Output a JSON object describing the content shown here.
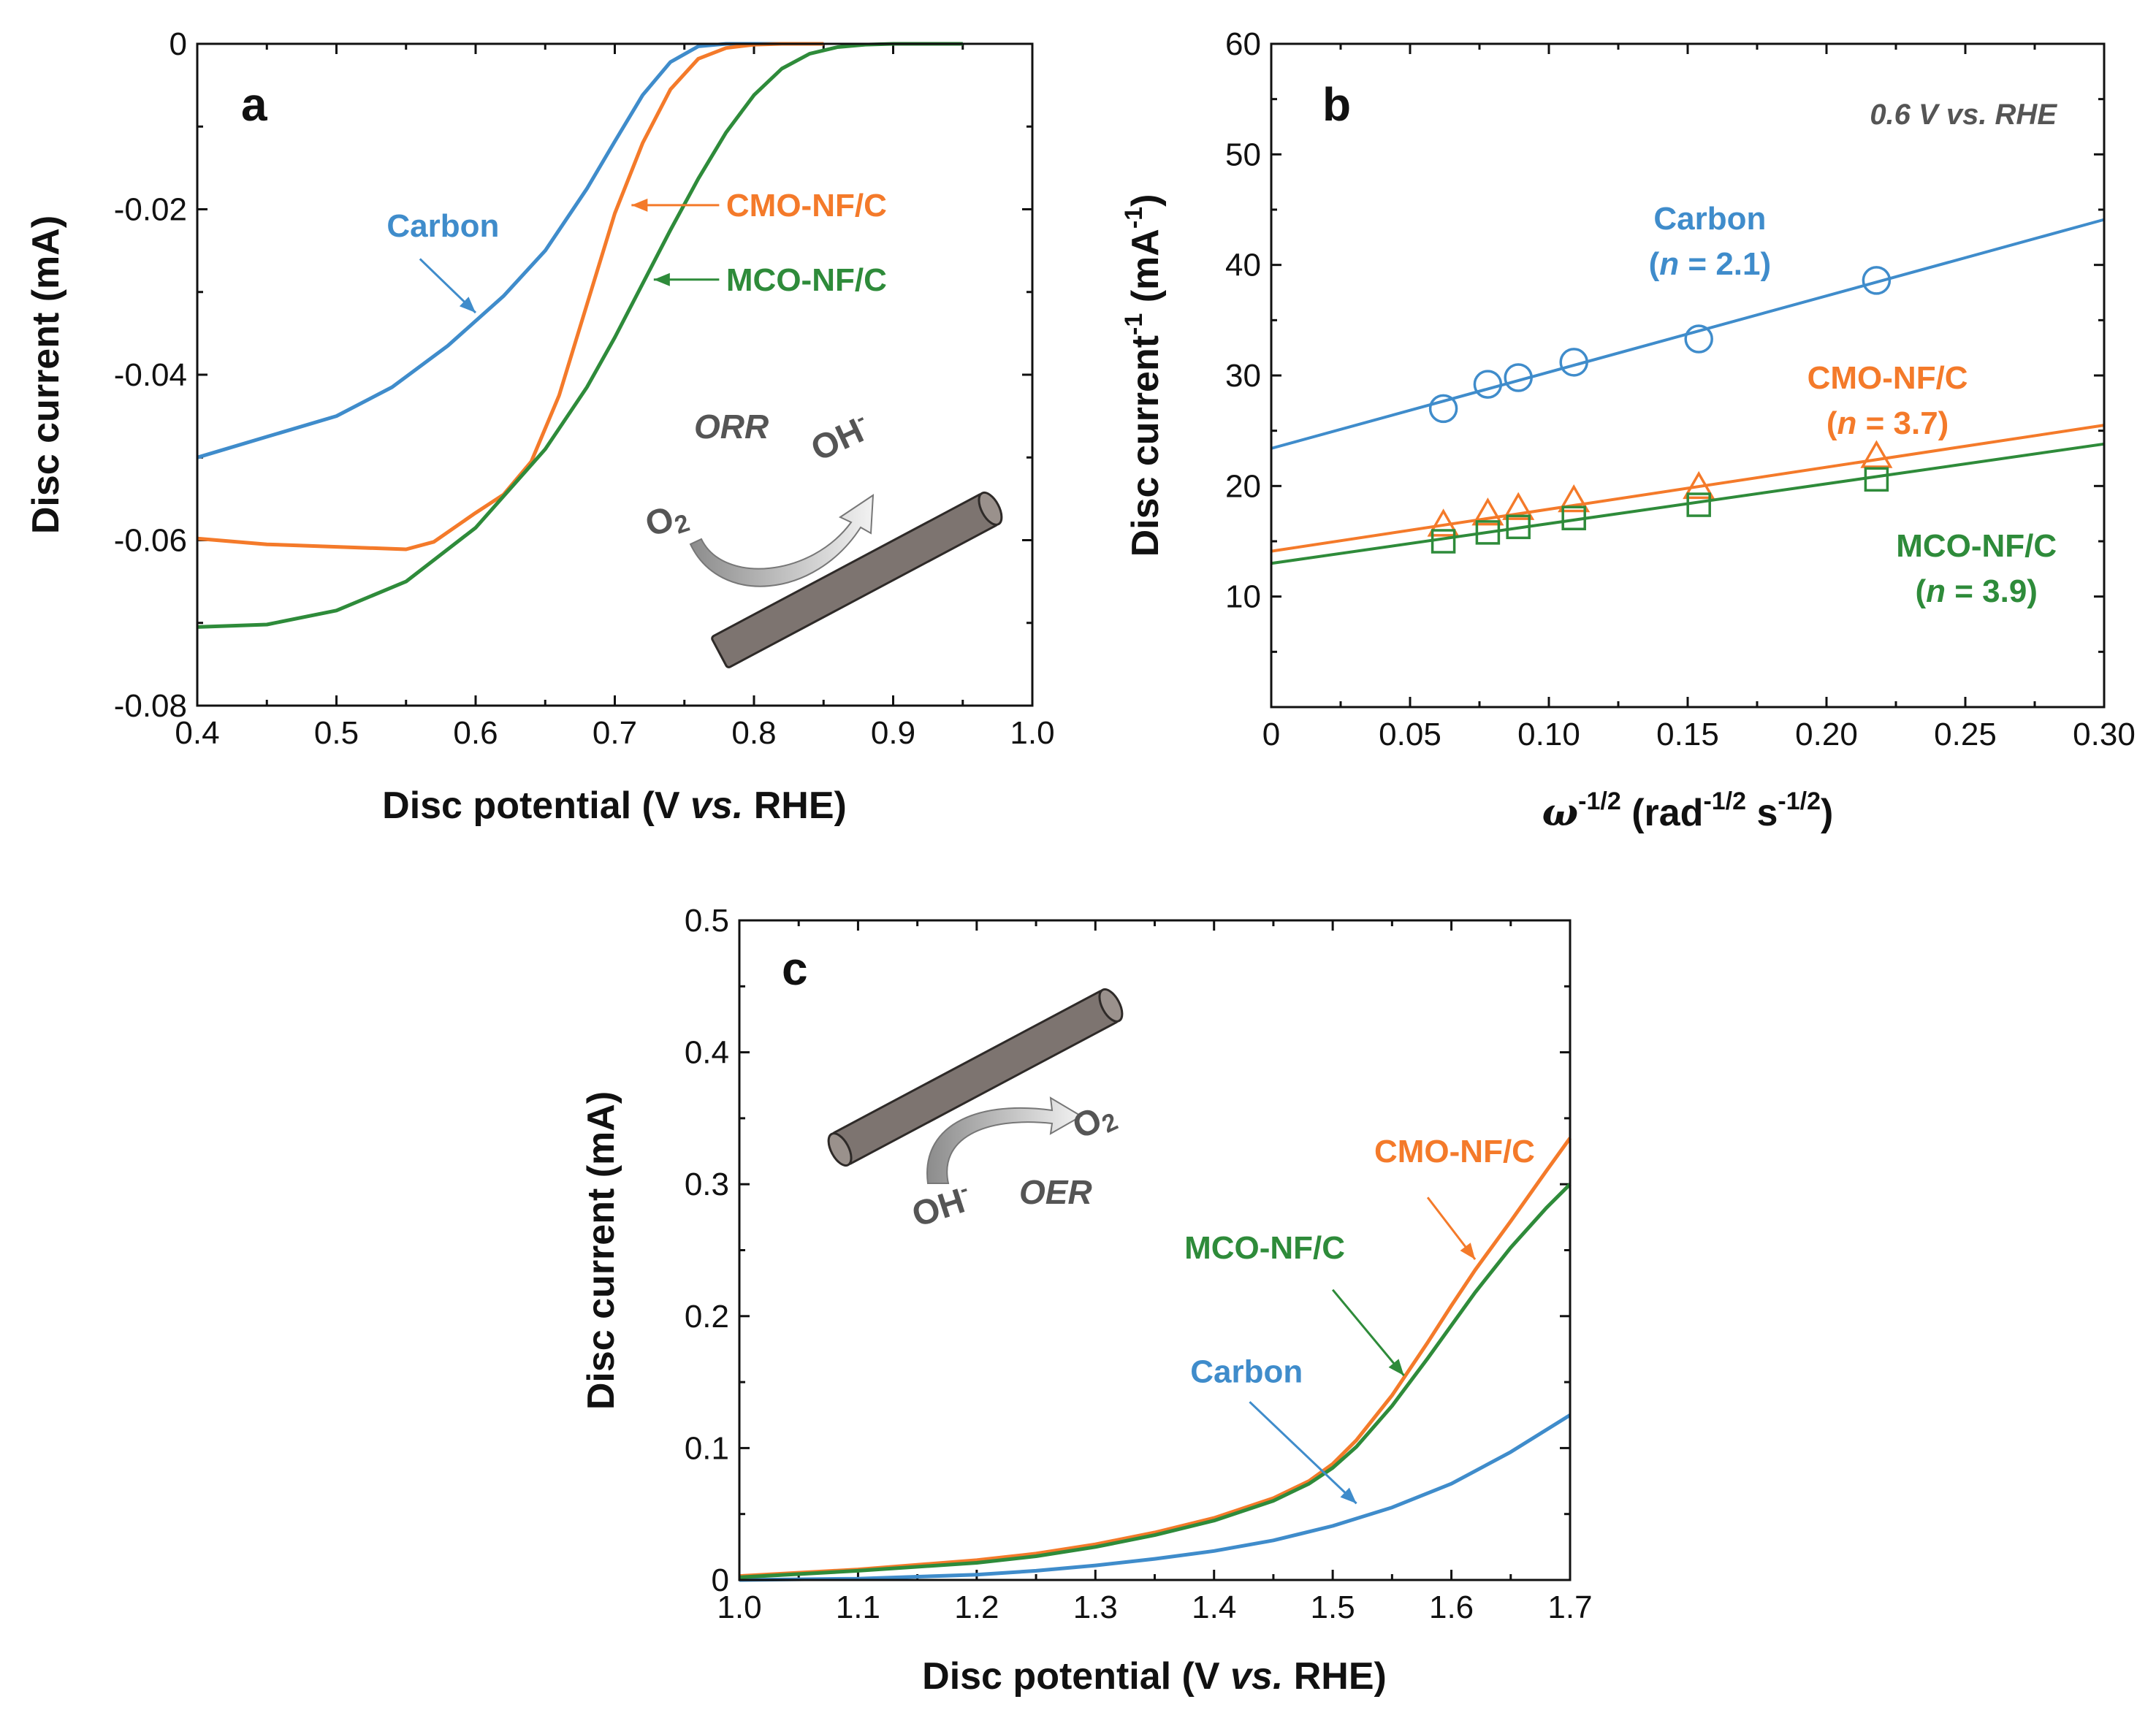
{
  "colors": {
    "carbon": "#3f8ccb",
    "cmo": "#f47a2a",
    "mco": "#2e8b3a",
    "axis": "#111111",
    "text_gray": "#555555"
  },
  "chart_data": [
    {
      "panel": "a",
      "type": "line",
      "xlabel_parts": [
        "Disc potential (V ",
        "vs.",
        " RHE)"
      ],
      "ylabel": "Disc current (mA)",
      "xlim": [
        0.4,
        1.0
      ],
      "ylim": [
        -0.08,
        0
      ],
      "xticks": [
        0.4,
        0.5,
        0.6,
        0.7,
        0.8,
        0.9,
        1.0
      ],
      "xtick_labels": [
        "0.4",
        "0.5",
        "0.6",
        "0.7",
        "0.8",
        "0.9",
        "1.0"
      ],
      "yticks": [
        0,
        -0.02,
        -0.04,
        -0.06,
        -0.08
      ],
      "ytick_labels": [
        "0",
        "-0.02",
        "-0.04",
        "-0.06",
        "-0.08"
      ],
      "series": [
        {
          "name": "Carbon",
          "color_key": "carbon",
          "x": [
            0.4,
            0.45,
            0.5,
            0.54,
            0.58,
            0.62,
            0.65,
            0.68,
            0.7,
            0.72,
            0.74,
            0.76,
            0.78,
            0.8,
            0.82,
            0.85
          ],
          "y": [
            -0.05,
            -0.0475,
            -0.045,
            -0.0415,
            -0.0365,
            -0.0305,
            -0.025,
            -0.0175,
            -0.0118,
            -0.0062,
            -0.0022,
            -0.0003,
            0,
            0,
            0,
            0
          ]
        },
        {
          "name": "CMO-NF/C",
          "color_key": "cmo",
          "x": [
            0.4,
            0.45,
            0.5,
            0.55,
            0.57,
            0.6,
            0.62,
            0.64,
            0.66,
            0.68,
            0.7,
            0.72,
            0.74,
            0.76,
            0.78,
            0.8,
            0.82,
            0.85
          ],
          "y": [
            -0.0598,
            -0.0605,
            -0.0608,
            -0.0611,
            -0.0602,
            -0.0567,
            -0.0545,
            -0.0505,
            -0.0425,
            -0.0315,
            -0.0205,
            -0.012,
            -0.0055,
            -0.0018,
            -0.0005,
            -0.0001,
            0,
            0
          ]
        },
        {
          "name": "MCO-NF/C",
          "color_key": "mco",
          "x": [
            0.4,
            0.45,
            0.5,
            0.55,
            0.6,
            0.65,
            0.68,
            0.7,
            0.72,
            0.74,
            0.76,
            0.78,
            0.8,
            0.82,
            0.84,
            0.86,
            0.88,
            0.9,
            0.92,
            0.95
          ],
          "y": [
            -0.0705,
            -0.0702,
            -0.0685,
            -0.065,
            -0.0585,
            -0.049,
            -0.0415,
            -0.0355,
            -0.029,
            -0.0225,
            -0.0163,
            -0.0107,
            -0.0062,
            -0.003,
            -0.0012,
            -0.0004,
            -0.0001,
            0,
            0,
            0
          ]
        }
      ],
      "labels": [
        {
          "text": "Carbon",
          "color_key": "carbon",
          "x": 0.617,
          "y": -0.022,
          "anchor": "end",
          "arrow_to": [
            0.6,
            -0.0325
          ],
          "arrow_from": [
            0.56,
            -0.026
          ]
        },
        {
          "text": "CMO-NF/C",
          "color_key": "cmo",
          "x": 0.78,
          "y": -0.0195,
          "anchor": "start",
          "arrow_to": [
            0.712,
            -0.0195
          ],
          "arrow_from": [
            0.775,
            -0.0195
          ]
        },
        {
          "text": "MCO-NF/C",
          "color_key": "mco",
          "x": 0.78,
          "y": -0.0285,
          "anchor": "start",
          "arrow_to": [
            0.728,
            -0.0285
          ],
          "arrow_from": [
            0.775,
            -0.0285
          ]
        }
      ],
      "panel_letter": "a",
      "inset": {
        "reaction": "ORR",
        "reactant": "O2",
        "product": "OH-"
      }
    },
    {
      "panel": "b",
      "type": "scatter",
      "xlabel_parts": [
        "ω",
        "-1/2",
        " (rad",
        "-1/2",
        " s",
        "-1/2",
        ")"
      ],
      "ylabel_parts": [
        "Disc current",
        "-1",
        " (mA",
        "-1",
        ")"
      ],
      "xlim": [
        0,
        0.3
      ],
      "ylim": [
        0,
        60
      ],
      "xticks": [
        0,
        0.05,
        0.1,
        0.15,
        0.2,
        0.25,
        0.3
      ],
      "xtick_labels": [
        "0",
        "0.05",
        "0.10",
        "0.15",
        "0.20",
        "0.25",
        "0.30"
      ],
      "yticks": [
        10,
        20,
        30,
        40,
        50,
        60
      ],
      "ytick_labels": [
        "10",
        "20",
        "30",
        "40",
        "50",
        "60"
      ],
      "condition": "0.6 V vs. RHE",
      "series": [
        {
          "name": "Carbon",
          "color_key": "carbon",
          "marker": "circle",
          "x": [
            0.062,
            0.078,
            0.089,
            0.109,
            0.154,
            0.218
          ],
          "y": [
            27,
            29.2,
            29.8,
            31.2,
            33.3,
            38.6
          ],
          "fit": [
            23.4,
            44.1
          ]
        },
        {
          "name": "CMO-NF/C",
          "color_key": "cmo",
          "marker": "triangle",
          "x": [
            0.062,
            0.078,
            0.089,
            0.109,
            0.154,
            0.218
          ],
          "y": [
            16.4,
            17.4,
            17.9,
            18.6,
            19.8,
            22.6
          ],
          "fit": [
            14.1,
            25.5
          ]
        },
        {
          "name": "MCO-NF/C",
          "color_key": "mco",
          "marker": "square",
          "x": [
            0.062,
            0.078,
            0.089,
            0.109,
            0.154,
            0.218
          ],
          "y": [
            15,
            15.8,
            16.3,
            17.1,
            18.3,
            20.6
          ],
          "fit": [
            13,
            23.8
          ]
        }
      ],
      "labels": [
        {
          "name": "Carbon",
          "line1": "Carbon",
          "n_label": "n",
          "n_value": " = 2.1",
          "color_key": "carbon",
          "x": 0.158,
          "y": 43.2
        },
        {
          "name": "CMO-NF/C",
          "line1": "CMO-NF/C",
          "n_label": "n",
          "n_value": " = 3.7",
          "color_key": "cmo",
          "x": 0.222,
          "y": 28.8
        },
        {
          "name": "MCO-NF/C",
          "line1": "MCO-NF/C",
          "n_label": "n",
          "n_value": " = 3.9",
          "color_key": "mco",
          "x": 0.254,
          "y": 13.6
        }
      ],
      "panel_letter": "b"
    },
    {
      "panel": "c",
      "type": "line",
      "xlabel_parts": [
        "Disc potential (V ",
        "vs.",
        " RHE)"
      ],
      "ylabel": "Disc current (mA)",
      "xlim": [
        1.0,
        1.7
      ],
      "ylim": [
        0,
        0.5
      ],
      "xticks": [
        1.0,
        1.1,
        1.2,
        1.3,
        1.4,
        1.5,
        1.6,
        1.7
      ],
      "xtick_labels": [
        "1.0",
        "1.1",
        "1.2",
        "1.3",
        "1.4",
        "1.5",
        "1.6",
        "1.7"
      ],
      "yticks": [
        0,
        0.1,
        0.2,
        0.3,
        0.4,
        0.5
      ],
      "ytick_labels": [
        "0",
        "0.1",
        "0.2",
        "0.3",
        "0.4",
        "0.5"
      ],
      "series": [
        {
          "name": "Carbon",
          "color_key": "carbon",
          "x": [
            1.0,
            1.1,
            1.2,
            1.25,
            1.3,
            1.35,
            1.4,
            1.45,
            1.5,
            1.55,
            1.6,
            1.65,
            1.7
          ],
          "y": [
            0,
            0.001,
            0.004,
            0.007,
            0.011,
            0.016,
            0.022,
            0.03,
            0.041,
            0.055,
            0.073,
            0.097,
            0.125
          ]
        },
        {
          "name": "CMO-NF/C",
          "color_key": "cmo",
          "x": [
            1.0,
            1.1,
            1.2,
            1.25,
            1.3,
            1.35,
            1.4,
            1.45,
            1.48,
            1.5,
            1.52,
            1.55,
            1.58,
            1.6,
            1.62,
            1.65,
            1.68,
            1.7
          ],
          "y": [
            0.003,
            0.008,
            0.015,
            0.02,
            0.027,
            0.036,
            0.047,
            0.062,
            0.075,
            0.088,
            0.106,
            0.14,
            0.18,
            0.208,
            0.235,
            0.272,
            0.31,
            0.335
          ]
        },
        {
          "name": "MCO-NF/C",
          "color_key": "mco",
          "x": [
            1.0,
            1.1,
            1.2,
            1.25,
            1.3,
            1.35,
            1.4,
            1.45,
            1.48,
            1.5,
            1.52,
            1.55,
            1.58,
            1.6,
            1.62,
            1.65,
            1.68,
            1.7
          ],
          "y": [
            0.002,
            0.007,
            0.013,
            0.018,
            0.025,
            0.034,
            0.045,
            0.06,
            0.073,
            0.085,
            0.101,
            0.132,
            0.168,
            0.193,
            0.218,
            0.252,
            0.282,
            0.3
          ]
        }
      ],
      "labels": [
        {
          "text": "CMO-NF/C",
          "color_key": "cmo",
          "x": 1.535,
          "y": 0.325,
          "anchor": "start",
          "arrow_from": [
            1.58,
            0.29
          ],
          "arrow_to": [
            1.62,
            0.243
          ]
        },
        {
          "text": "MCO-NF/C",
          "color_key": "mco",
          "x": 1.375,
          "y": 0.252,
          "anchor": "start",
          "arrow_from": [
            1.5,
            0.22
          ],
          "arrow_to": [
            1.56,
            0.155
          ]
        },
        {
          "text": "Carbon",
          "color_key": "carbon",
          "x": 1.38,
          "y": 0.158,
          "anchor": "start",
          "arrow_from": [
            1.43,
            0.135
          ],
          "arrow_to": [
            1.52,
            0.058
          ]
        }
      ],
      "panel_letter": "c",
      "inset": {
        "reaction": "OER",
        "reactant": "OH-",
        "product": "O2"
      }
    }
  ]
}
